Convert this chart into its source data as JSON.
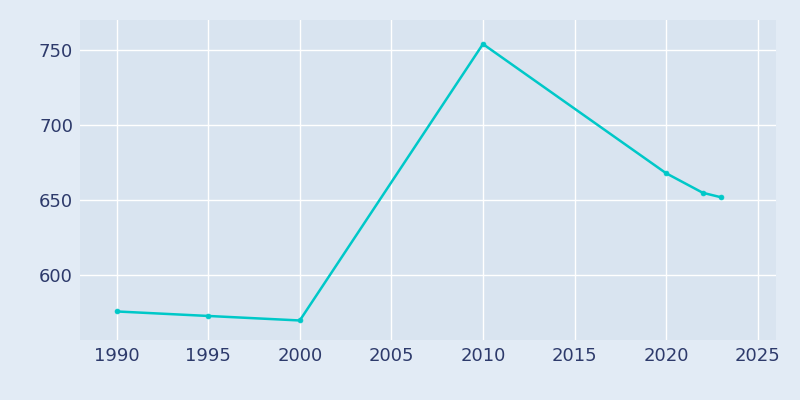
{
  "years": [
    1990,
    1995,
    2000,
    2010,
    2020,
    2022,
    2023
  ],
  "population": [
    576,
    573,
    570,
    754,
    668,
    655,
    652
  ],
  "line_color": "#00C8C8",
  "marker": "o",
  "marker_size": 3.5,
  "line_width": 1.8,
  "bg_color": "#E2EBF5",
  "plot_bg_color": "#D9E4F0",
  "grid_color": "#FFFFFF",
  "tick_color": "#2D3A6B",
  "xlim": [
    1988,
    2026
  ],
  "ylim": [
    557,
    770
  ],
  "xticks": [
    1990,
    1995,
    2000,
    2005,
    2010,
    2015,
    2020,
    2025
  ],
  "yticks": [
    600,
    650,
    700,
    750
  ],
  "tick_fontsize": 13
}
